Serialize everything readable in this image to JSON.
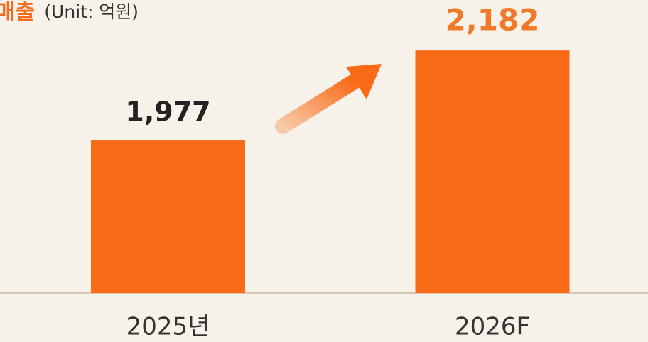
{
  "chart_data": {
    "type": "bar",
    "title": "매출",
    "subtitle": "(Unit: 억원)",
    "categories": [
      "2025년",
      "2026F"
    ],
    "values": [
      1977,
      2182
    ],
    "value_labels": [
      "1,977",
      "2,182"
    ],
    "color": "#f96a16",
    "label_colors": [
      "#222222",
      "#f07a2a"
    ],
    "ylim": [
      1630,
      2200
    ]
  }
}
